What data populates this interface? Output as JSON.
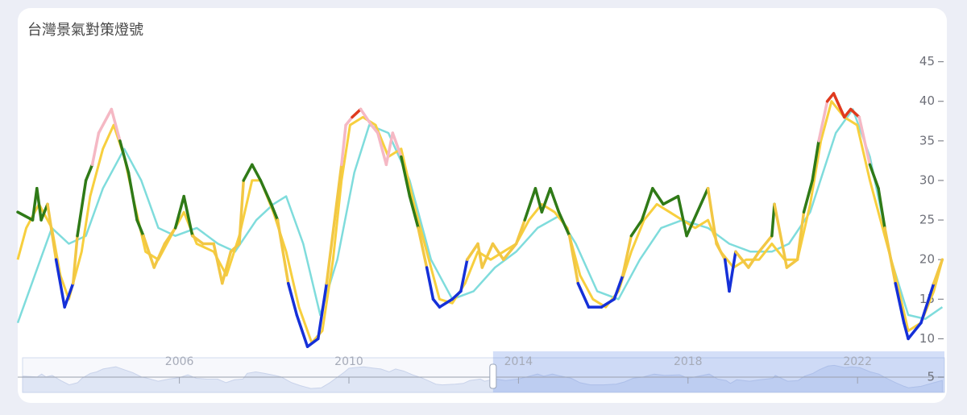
{
  "chart_data": {
    "type": "line",
    "title": "台灣景氣對策燈號",
    "xlim": [
      2002.3,
      2024.05
    ],
    "xticks": [
      2006,
      2010,
      2014,
      2018,
      2022
    ],
    "ylim": [
      8,
      47
    ],
    "yticks": [
      10,
      15,
      20,
      25,
      30,
      35,
      40,
      45
    ],
    "slider_yticks": [
      5
    ],
    "zoom_start": 2013.4,
    "visual_map": [
      {
        "lte": 16,
        "color": "#1530d8"
      },
      {
        "lte": 22,
        "color": "#f2c744"
      },
      {
        "lte": 31,
        "color": "#2f7a17"
      },
      {
        "lte": 37,
        "color": "#f5b8c4"
      },
      {
        "color": "#e03a1e"
      }
    ],
    "series": [
      {
        "x": [
          2002.3,
          2002.65,
          2002.75,
          2002.85,
          2003.0,
          2003.2,
          2003.4,
          2003.6,
          2003.7,
          2003.9,
          2004.05,
          2004.2,
          2004.5,
          2004.7,
          2004.9,
          2005.1,
          2005.25,
          2005.5,
          2005.75,
          2006.0,
          2006.2,
          2006.4,
          2006.65,
          2006.9,
          2007.1,
          2007.3,
          2007.5,
          2007.6,
          2007.8,
          2008.0,
          2008.25,
          2008.4,
          2008.65,
          2008.85,
          2009.1,
          2009.35,
          2009.55,
          2009.9,
          2010.0,
          2010.15,
          2010.35,
          2010.6,
          2010.75,
          2010.95,
          2011.1,
          2011.3,
          2011.5,
          2011.7,
          2011.9,
          2012.05,
          2012.2,
          2012.5,
          2012.7,
          2012.85,
          2013.1,
          2013.2,
          2013.45,
          2013.7,
          2014.0,
          2014.2,
          2014.45,
          2014.6,
          2014.8,
          2015.0,
          2015.25,
          2015.45,
          2015.7,
          2016.0,
          2016.3,
          2016.5,
          2016.7,
          2016.95,
          2017.2,
          2017.45,
          2017.8,
          2018.0,
          2018.5,
          2018.7,
          2018.9,
          2019.0,
          2019.15,
          2019.45,
          2019.7,
          2020.0,
          2020.06,
          2020.35,
          2020.6,
          2020.75,
          2020.95,
          2021.1,
          2021.3,
          2021.45,
          2021.7,
          2021.85,
          2022.05,
          2022.3,
          2022.5,
          2022.65,
          2022.9,
          2023.1,
          2023.2,
          2023.5,
          2023.8,
          2024.0
        ],
        "values": [
          26,
          25,
          29,
          25,
          27,
          20,
          14,
          17,
          23,
          30,
          32,
          36,
          39,
          35,
          31,
          25,
          23,
          19,
          22,
          24,
          28,
          23,
          22,
          22,
          17,
          21,
          22,
          30,
          32,
          30,
          27,
          25,
          17,
          13,
          9,
          10,
          17,
          32,
          37,
          38,
          39,
          37,
          36,
          32,
          36,
          33,
          28,
          24,
          19,
          15,
          14,
          15,
          16,
          20,
          22,
          19,
          22,
          20,
          22,
          25,
          29,
          26,
          29,
          26,
          23,
          17,
          14,
          14,
          15,
          18,
          23,
          25,
          29,
          27,
          28,
          23,
          29,
          22,
          20,
          16,
          21,
          19,
          21,
          23,
          27,
          19,
          20,
          26,
          30,
          35,
          40,
          41,
          38,
          39,
          38,
          32,
          29,
          24,
          17,
          12,
          10,
          12,
          17,
          20
        ]
      },
      {
        "color": "#f7cf3e",
        "x": [
          2002.3,
          2002.5,
          2002.8,
          2003.1,
          2003.3,
          2003.5,
          2003.8,
          2004.0,
          2004.3,
          2004.55,
          2004.8,
          2005.0,
          2005.3,
          2005.6,
          2005.9,
          2006.2,
          2006.5,
          2006.9,
          2007.2,
          2007.5,
          2007.8,
          2008.0,
          2008.3,
          2008.6,
          2008.9,
          2009.2,
          2009.45,
          2009.7,
          2009.9,
          2010.1,
          2010.4,
          2010.7,
          2011.0,
          2011.3,
          2011.6,
          2011.9,
          2012.2,
          2012.5,
          2012.8,
          2013.1,
          2013.4,
          2013.7,
          2014.0,
          2014.3,
          2014.6,
          2014.9,
          2015.2,
          2015.5,
          2015.8,
          2016.1,
          2016.4,
          2016.7,
          2017.0,
          2017.3,
          2017.6,
          2017.9,
          2018.2,
          2018.5,
          2018.8,
          2019.1,
          2019.4,
          2019.7,
          2020.0,
          2020.3,
          2020.6,
          2020.9,
          2021.15,
          2021.4,
          2021.7,
          2022.0,
          2022.3,
          2022.6,
          2022.9,
          2023.2,
          2023.5,
          2023.8,
          2024.0
        ],
        "values": [
          20,
          24,
          27,
          24,
          18,
          15,
          21,
          28,
          34,
          37,
          33,
          28,
          21,
          20,
          23,
          26,
          22,
          21,
          18,
          23,
          30,
          30,
          26,
          21,
          14,
          9.5,
          11,
          20,
          30,
          37,
          38,
          37,
          33,
          34,
          27,
          21,
          15,
          14.5,
          17,
          21,
          20,
          21,
          22,
          25,
          27,
          26,
          24,
          18,
          15,
          14,
          16,
          21,
          25,
          27,
          26,
          25,
          24,
          25,
          21,
          19,
          20,
          20,
          22,
          20,
          20,
          27,
          35,
          40,
          38,
          37,
          30,
          24,
          18,
          11,
          12,
          16,
          20
        ]
      },
      {
        "color": "#7fdcdc",
        "x": [
          2002.3,
          2002.7,
          2003.1,
          2003.5,
          2003.9,
          2004.3,
          2004.8,
          2005.2,
          2005.6,
          2006.0,
          2006.5,
          2007.0,
          2007.4,
          2007.9,
          2008.3,
          2008.6,
          2009.0,
          2009.4,
          2009.8,
          2010.2,
          2010.55,
          2011.0,
          2011.5,
          2012.0,
          2012.5,
          2013.0,
          2013.5,
          2014.0,
          2014.5,
          2015.0,
          2015.4,
          2015.9,
          2016.4,
          2016.9,
          2017.4,
          2017.9,
          2018.5,
          2019.0,
          2019.5,
          2020.0,
          2020.4,
          2020.9,
          2021.5,
          2021.9,
          2022.3,
          2022.8,
          2023.2,
          2023.6,
          2024.0
        ],
        "values": [
          12,
          18,
          24,
          22,
          23,
          29,
          34,
          30,
          24,
          23,
          24,
          22,
          21,
          25,
          27,
          28,
          22,
          13,
          20,
          31,
          37,
          36,
          30,
          20,
          15,
          16,
          19,
          21,
          24,
          25.5,
          22,
          16,
          15,
          20,
          24,
          25,
          24,
          22,
          21,
          21,
          22,
          26,
          36,
          39,
          33,
          20,
          13,
          12.5,
          14
        ]
      }
    ]
  }
}
